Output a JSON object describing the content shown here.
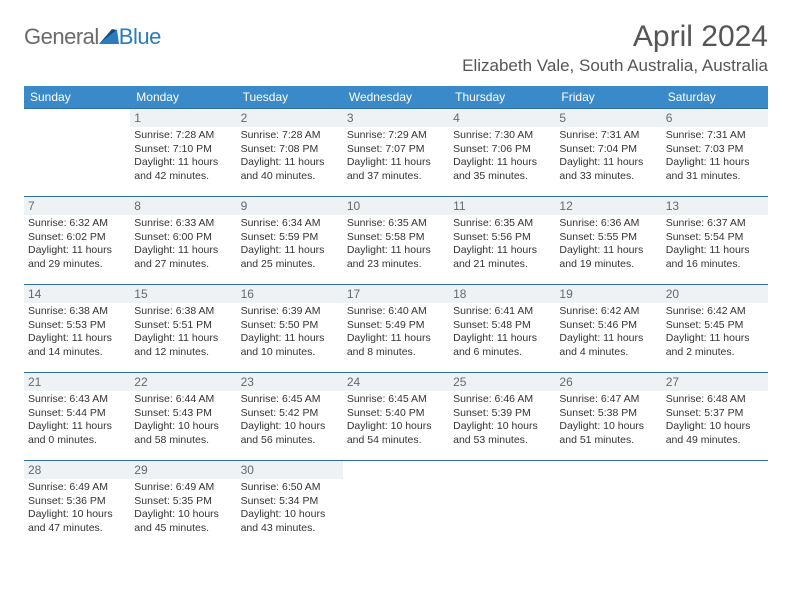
{
  "logo": {
    "word1": "General",
    "word2": "Blue"
  },
  "title": "April 2024",
  "location": "Elizabeth Vale, South Australia, Australia",
  "colors": {
    "header_bg": "#3a89c9",
    "header_text": "#ffffff",
    "row_border": "#2f6fa3",
    "daynum_bg": "#eef2f5",
    "daynum_text": "#626a72",
    "body_text": "#333333",
    "logo_gray": "#6a6a6a",
    "logo_blue": "#2b7bbf"
  },
  "weekdayHeaders": [
    "Sunday",
    "Monday",
    "Tuesday",
    "Wednesday",
    "Thursday",
    "Friday",
    "Saturday"
  ],
  "weeks": [
    [
      {
        "day": "",
        "sunrise": "",
        "sunset": "",
        "daylight": ""
      },
      {
        "day": "1",
        "sunrise": "Sunrise: 7:28 AM",
        "sunset": "Sunset: 7:10 PM",
        "daylight": "Daylight: 11 hours and 42 minutes."
      },
      {
        "day": "2",
        "sunrise": "Sunrise: 7:28 AM",
        "sunset": "Sunset: 7:08 PM",
        "daylight": "Daylight: 11 hours and 40 minutes."
      },
      {
        "day": "3",
        "sunrise": "Sunrise: 7:29 AM",
        "sunset": "Sunset: 7:07 PM",
        "daylight": "Daylight: 11 hours and 37 minutes."
      },
      {
        "day": "4",
        "sunrise": "Sunrise: 7:30 AM",
        "sunset": "Sunset: 7:06 PM",
        "daylight": "Daylight: 11 hours and 35 minutes."
      },
      {
        "day": "5",
        "sunrise": "Sunrise: 7:31 AM",
        "sunset": "Sunset: 7:04 PM",
        "daylight": "Daylight: 11 hours and 33 minutes."
      },
      {
        "day": "6",
        "sunrise": "Sunrise: 7:31 AM",
        "sunset": "Sunset: 7:03 PM",
        "daylight": "Daylight: 11 hours and 31 minutes."
      }
    ],
    [
      {
        "day": "7",
        "sunrise": "Sunrise: 6:32 AM",
        "sunset": "Sunset: 6:02 PM",
        "daylight": "Daylight: 11 hours and 29 minutes."
      },
      {
        "day": "8",
        "sunrise": "Sunrise: 6:33 AM",
        "sunset": "Sunset: 6:00 PM",
        "daylight": "Daylight: 11 hours and 27 minutes."
      },
      {
        "day": "9",
        "sunrise": "Sunrise: 6:34 AM",
        "sunset": "Sunset: 5:59 PM",
        "daylight": "Daylight: 11 hours and 25 minutes."
      },
      {
        "day": "10",
        "sunrise": "Sunrise: 6:35 AM",
        "sunset": "Sunset: 5:58 PM",
        "daylight": "Daylight: 11 hours and 23 minutes."
      },
      {
        "day": "11",
        "sunrise": "Sunrise: 6:35 AM",
        "sunset": "Sunset: 5:56 PM",
        "daylight": "Daylight: 11 hours and 21 minutes."
      },
      {
        "day": "12",
        "sunrise": "Sunrise: 6:36 AM",
        "sunset": "Sunset: 5:55 PM",
        "daylight": "Daylight: 11 hours and 19 minutes."
      },
      {
        "day": "13",
        "sunrise": "Sunrise: 6:37 AM",
        "sunset": "Sunset: 5:54 PM",
        "daylight": "Daylight: 11 hours and 16 minutes."
      }
    ],
    [
      {
        "day": "14",
        "sunrise": "Sunrise: 6:38 AM",
        "sunset": "Sunset: 5:53 PM",
        "daylight": "Daylight: 11 hours and 14 minutes."
      },
      {
        "day": "15",
        "sunrise": "Sunrise: 6:38 AM",
        "sunset": "Sunset: 5:51 PM",
        "daylight": "Daylight: 11 hours and 12 minutes."
      },
      {
        "day": "16",
        "sunrise": "Sunrise: 6:39 AM",
        "sunset": "Sunset: 5:50 PM",
        "daylight": "Daylight: 11 hours and 10 minutes."
      },
      {
        "day": "17",
        "sunrise": "Sunrise: 6:40 AM",
        "sunset": "Sunset: 5:49 PM",
        "daylight": "Daylight: 11 hours and 8 minutes."
      },
      {
        "day": "18",
        "sunrise": "Sunrise: 6:41 AM",
        "sunset": "Sunset: 5:48 PM",
        "daylight": "Daylight: 11 hours and 6 minutes."
      },
      {
        "day": "19",
        "sunrise": "Sunrise: 6:42 AM",
        "sunset": "Sunset: 5:46 PM",
        "daylight": "Daylight: 11 hours and 4 minutes."
      },
      {
        "day": "20",
        "sunrise": "Sunrise: 6:42 AM",
        "sunset": "Sunset: 5:45 PM",
        "daylight": "Daylight: 11 hours and 2 minutes."
      }
    ],
    [
      {
        "day": "21",
        "sunrise": "Sunrise: 6:43 AM",
        "sunset": "Sunset: 5:44 PM",
        "daylight": "Daylight: 11 hours and 0 minutes."
      },
      {
        "day": "22",
        "sunrise": "Sunrise: 6:44 AM",
        "sunset": "Sunset: 5:43 PM",
        "daylight": "Daylight: 10 hours and 58 minutes."
      },
      {
        "day": "23",
        "sunrise": "Sunrise: 6:45 AM",
        "sunset": "Sunset: 5:42 PM",
        "daylight": "Daylight: 10 hours and 56 minutes."
      },
      {
        "day": "24",
        "sunrise": "Sunrise: 6:45 AM",
        "sunset": "Sunset: 5:40 PM",
        "daylight": "Daylight: 10 hours and 54 minutes."
      },
      {
        "day": "25",
        "sunrise": "Sunrise: 6:46 AM",
        "sunset": "Sunset: 5:39 PM",
        "daylight": "Daylight: 10 hours and 53 minutes."
      },
      {
        "day": "26",
        "sunrise": "Sunrise: 6:47 AM",
        "sunset": "Sunset: 5:38 PM",
        "daylight": "Daylight: 10 hours and 51 minutes."
      },
      {
        "day": "27",
        "sunrise": "Sunrise: 6:48 AM",
        "sunset": "Sunset: 5:37 PM",
        "daylight": "Daylight: 10 hours and 49 minutes."
      }
    ],
    [
      {
        "day": "28",
        "sunrise": "Sunrise: 6:49 AM",
        "sunset": "Sunset: 5:36 PM",
        "daylight": "Daylight: 10 hours and 47 minutes."
      },
      {
        "day": "29",
        "sunrise": "Sunrise: 6:49 AM",
        "sunset": "Sunset: 5:35 PM",
        "daylight": "Daylight: 10 hours and 45 minutes."
      },
      {
        "day": "30",
        "sunrise": "Sunrise: 6:50 AM",
        "sunset": "Sunset: 5:34 PM",
        "daylight": "Daylight: 10 hours and 43 minutes."
      },
      {
        "day": "",
        "sunrise": "",
        "sunset": "",
        "daylight": ""
      },
      {
        "day": "",
        "sunrise": "",
        "sunset": "",
        "daylight": ""
      },
      {
        "day": "",
        "sunrise": "",
        "sunset": "",
        "daylight": ""
      },
      {
        "day": "",
        "sunrise": "",
        "sunset": "",
        "daylight": ""
      }
    ]
  ]
}
